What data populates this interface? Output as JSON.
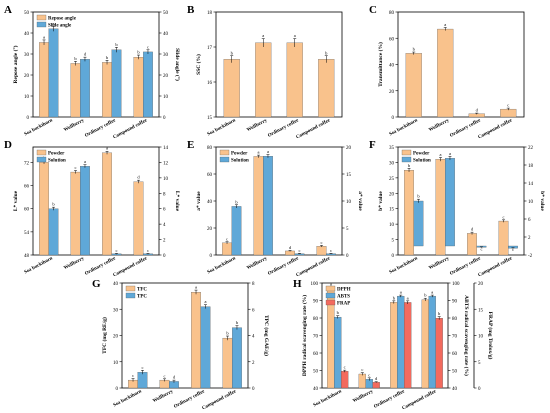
{
  "colors": {
    "orange": "#F9C28C",
    "blue": "#5FA8D8",
    "red": "#F36A5E",
    "axis": "#000000"
  },
  "chart_data": [
    {
      "panel": "A",
      "type": "bar",
      "categories": [
        "Sea buckthorn",
        "Wolfberry",
        "Ordinary coffee",
        "Compound coffee"
      ],
      "ylabel": "Repose angle (°)",
      "ylabel_right": "Slide angle (°)",
      "ylim": [
        0,
        50
      ],
      "ylim_right": [
        0,
        50
      ],
      "yticks": [
        0,
        10,
        20,
        30,
        40,
        50
      ],
      "yticks_right": [
        0,
        10,
        20,
        30,
        40,
        50
      ],
      "legend": "top-left",
      "series": [
        {
          "name": "Repose angle",
          "color": "orange",
          "axis": "left",
          "values": [
            35.5,
            25.5,
            26.0,
            28.5
          ],
          "errors": [
            1.2,
            1.0,
            1.0,
            1.0
          ],
          "letters": [
            "a",
            "b",
            "b",
            "b"
          ]
        },
        {
          "name": "Slide angle",
          "color": "blue",
          "axis": "right",
          "values": [
            42.0,
            27.5,
            32.0,
            31.0
          ],
          "errors": [
            1.2,
            1.0,
            1.2,
            1.0
          ],
          "letters": [
            "a",
            "d",
            "b",
            "c"
          ]
        }
      ]
    },
    {
      "panel": "B",
      "type": "bar",
      "categories": [
        "Sea buckthorn",
        "Wolfberry",
        "Ordinary coffee",
        "Compound coffee"
      ],
      "ylabel": "SSC (%)",
      "ylim": [
        15,
        18
      ],
      "yticks": [
        15,
        16,
        17,
        18
      ],
      "series": [
        {
          "color": "orange",
          "axis": "left",
          "values": [
            16.65,
            17.12,
            17.12,
            16.65
          ],
          "errors": [
            0.1,
            0.12,
            0.12,
            0.1
          ],
          "letters": [
            "b",
            "a",
            "a",
            "b"
          ]
        }
      ]
    },
    {
      "panel": "C",
      "type": "bar",
      "categories": [
        "Sea buckthorn",
        "Wolfberry",
        "Ordinary coffee",
        "Compound coffee"
      ],
      "ylabel": "Transmittance (%)",
      "ylim": [
        0,
        80
      ],
      "yticks": [
        0,
        20,
        40,
        60,
        80
      ],
      "series": [
        {
          "color": "orange",
          "axis": "left",
          "values": [
            48.5,
            67.0,
            2.5,
            6.0
          ],
          "errors": [
            1.0,
            1.2,
            0.5,
            0.8
          ],
          "letters": [
            "b",
            "a",
            "d",
            "c"
          ]
        }
      ]
    },
    {
      "panel": "D",
      "type": "bar",
      "categories": [
        "Sea buckthorn",
        "Wolfberry",
        "Ordinary coffee",
        "Compound coffee"
      ],
      "ylabel": "L* value",
      "ylabel_right": "L* value",
      "ylim": [
        48,
        76
      ],
      "ylim_right": [
        0,
        14
      ],
      "yticks": [
        48,
        54,
        60,
        66,
        72
      ],
      "yticks_right": [
        0,
        2,
        4,
        6,
        8,
        10,
        12,
        14
      ],
      "legend": "top-left",
      "series": [
        {
          "name": "Powder",
          "color": "orange",
          "axis": "left",
          "values": [
            72.0,
            69.5,
            74.5,
            67.0
          ],
          "errors": [
            0.4,
            0.4,
            0.4,
            0.4
          ],
          "letters": [
            "b",
            "c",
            "a",
            "d"
          ]
        },
        {
          "name": "Solution",
          "color": "blue",
          "axis": "right",
          "values": [
            6.0,
            11.5,
            0.15,
            0.15
          ],
          "errors": [
            0.2,
            0.2,
            0.05,
            0.05
          ],
          "letters": [
            "b",
            "a",
            "c",
            "c"
          ]
        }
      ]
    },
    {
      "panel": "E",
      "type": "bar",
      "categories": [
        "Sea buckthorn",
        "Wolfberry",
        "Ordinary coffee",
        "Compound coffee"
      ],
      "ylabel": "a* value",
      "ylabel_right": "a* value",
      "ylim": [
        0,
        80
      ],
      "ylim_right": [
        0,
        20
      ],
      "yticks": [
        0,
        20,
        40,
        60,
        80
      ],
      "yticks_right": [
        0,
        5,
        10,
        15,
        20
      ],
      "legend": "top-left",
      "series": [
        {
          "name": "Powder",
          "color": "orange",
          "axis": "left",
          "values": [
            9.0,
            73.0,
            3.0,
            6.5
          ],
          "errors": [
            0.8,
            1.0,
            0.4,
            0.6
          ],
          "letters": [
            "c",
            "a",
            "d",
            "c"
          ]
        },
        {
          "name": "Solution",
          "color": "blue",
          "axis": "right",
          "values": [
            9.0,
            18.3,
            0.25,
            0.25
          ],
          "errors": [
            0.3,
            0.3,
            0.05,
            0.05
          ],
          "letters": [
            "b",
            "a",
            "c",
            "c"
          ]
        }
      ]
    },
    {
      "panel": "F",
      "type": "bar",
      "categories": [
        "Sea buckthorn",
        "Wolfberry",
        "Ordinary coffee",
        "Compound coffee"
      ],
      "ylabel": "b* value",
      "ylabel_right": "b* value",
      "ylim": [
        0,
        35
      ],
      "ylim_right": [
        -2,
        22
      ],
      "yticks": [
        0,
        5,
        10,
        15,
        20,
        25,
        30,
        35
      ],
      "yticks_right": [
        -2,
        2,
        6,
        10,
        14,
        18,
        22
      ],
      "legend": "top-left",
      "series": [
        {
          "name": "Powder",
          "color": "orange",
          "axis": "left",
          "values": [
            27.5,
            31.0,
            7.0,
            11.0
          ],
          "errors": [
            0.6,
            0.6,
            0.4,
            0.4
          ],
          "letters": [
            "b",
            "a",
            "d",
            "c"
          ]
        },
        {
          "name": "Solution",
          "color": "blue",
          "axis": "right",
          "values": [
            10.0,
            19.5,
            -0.3,
            -0.5
          ],
          "errors": [
            0.4,
            0.4,
            0.1,
            0.1
          ],
          "letters": [
            "b",
            "a",
            "c",
            "c"
          ]
        }
      ]
    },
    {
      "panel": "G",
      "type": "bar",
      "categories": [
        "Sea buckthorn",
        "Wolfberry",
        "Ordinary coffee",
        "Compound coffee"
      ],
      "ylabel": "TFC (mg RE/g)",
      "ylabel_right": "TPC (mg GAE/g)",
      "ylim": [
        0,
        40
      ],
      "ylim_right": [
        0,
        8
      ],
      "yticks": [
        0,
        10,
        20,
        30,
        40
      ],
      "yticks_right": [
        0,
        2,
        4,
        6,
        8
      ],
      "legend": "top-left",
      "series": [
        {
          "name": "TFC",
          "color": "orange",
          "axis": "left",
          "values": [
            3.0,
            3.0,
            36.5,
            19.0
          ],
          "errors": [
            0.6,
            0.5,
            0.8,
            0.8
          ],
          "letters": [
            "c",
            "c",
            "a",
            "b"
          ]
        },
        {
          "name": "TPC",
          "color": "blue",
          "axis": "right",
          "values": [
            1.2,
            0.5,
            6.2,
            4.6
          ],
          "errors": [
            0.15,
            0.1,
            0.15,
            0.15
          ],
          "letters": [
            "c",
            "d",
            "a",
            "b"
          ]
        }
      ]
    },
    {
      "panel": "H",
      "type": "bar",
      "categories": [
        "Sea buckthorn",
        "Wolfberry",
        "Ordinary coffee",
        "Compound coffee"
      ],
      "ylabel": "DPPH radical scavenging rate (%)",
      "ylabel_right": "ABTS radical scavenging rate (%)",
      "ylabel_far_right": "FRAP (mg Trolox/g)",
      "ylim": [
        40,
        100
      ],
      "ylim_right": [
        40,
        100
      ],
      "ylim_far_right": [
        0,
        20
      ],
      "yticks": [
        40,
        50,
        60,
        70,
        80,
        90,
        100
      ],
      "yticks_right": [
        40,
        50,
        60,
        70,
        80,
        90,
        100
      ],
      "yticks_far_right": [
        0,
        5,
        10,
        15,
        20
      ],
      "legend": "top-left",
      "series": [
        {
          "name": "DPPH",
          "color": "orange",
          "axis": "left",
          "values": [
            97.0,
            48.0,
            89.0,
            90.5
          ],
          "errors": [
            0.8,
            0.8,
            0.8,
            0.8
          ],
          "letters": [
            "a",
            "c",
            "b",
            "b"
          ]
        },
        {
          "name": "ABTS",
          "color": "blue",
          "axis": "right",
          "values": [
            80.5,
            45.0,
            92.5,
            92.5
          ],
          "errors": [
            0.8,
            0.8,
            0.6,
            0.6
          ],
          "letters": [
            "b",
            "c",
            "a",
            "a"
          ]
        },
        {
          "name": "FRAP",
          "color": "red",
          "axis": "far_right",
          "values": [
            3.2,
            1.1,
            16.3,
            13.3
          ],
          "errors": [
            0.2,
            0.1,
            0.3,
            0.3
          ],
          "letters": [
            "c",
            "d",
            "a",
            "b"
          ]
        }
      ]
    }
  ]
}
